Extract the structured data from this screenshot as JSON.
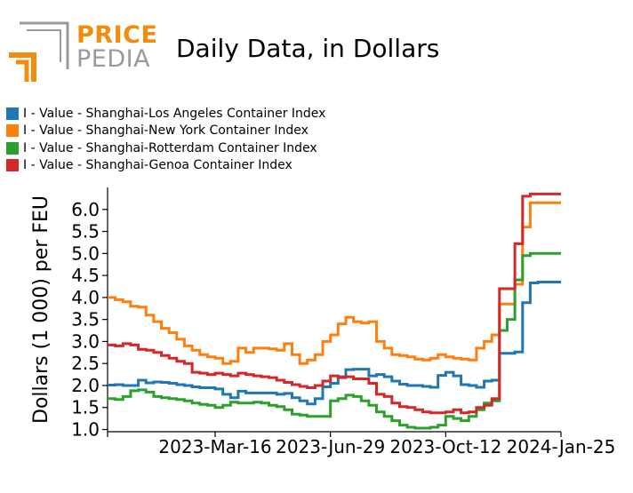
{
  "logo": {
    "word1": "PRICE",
    "word2": "PEDIA"
  },
  "colors": {
    "logo_orange": "#f28c0f",
    "logo_gray": "#9a9a9a"
  },
  "chart_data": {
    "type": "line",
    "title": "Daily Data, in Dollars",
    "ylabel": "Dollars (1 000) per FEU",
    "xlabel": "",
    "ylim": [
      0.95,
      6.5
    ],
    "yticks": [
      1.0,
      1.5,
      2.0,
      2.5,
      3.0,
      3.5,
      4.0,
      4.5,
      5.0,
      5.5,
      6.0
    ],
    "ytick_labels": [
      "1.0",
      "1.5",
      "2.0",
      "2.5",
      "3.0",
      "3.5",
      "4.0",
      "4.5",
      "5.0",
      "5.5",
      "6.0"
    ],
    "xlim": [
      "2022-12-08",
      "2024-01-25"
    ],
    "xticks": [
      "2023-03-16",
      "2023-06-29",
      "2023-10-12",
      "2024-01-25"
    ],
    "xtick_labels": [
      "2023-Mar-16",
      "2023-Jun-29",
      "2023-Oct-12",
      "2024-Jan-25"
    ],
    "legend_position": "top-left",
    "grid": false,
    "x": [
      "2022-12-08",
      "2022-12-15",
      "2022-12-22",
      "2022-12-29",
      "2023-01-05",
      "2023-01-12",
      "2023-01-19",
      "2023-01-26",
      "2023-02-02",
      "2023-02-09",
      "2023-02-16",
      "2023-02-23",
      "2023-03-02",
      "2023-03-09",
      "2023-03-16",
      "2023-03-23",
      "2023-03-30",
      "2023-04-06",
      "2023-04-13",
      "2023-04-20",
      "2023-04-27",
      "2023-05-04",
      "2023-05-11",
      "2023-05-18",
      "2023-05-25",
      "2023-06-01",
      "2023-06-08",
      "2023-06-15",
      "2023-06-22",
      "2023-06-29",
      "2023-07-06",
      "2023-07-13",
      "2023-07-20",
      "2023-07-27",
      "2023-08-03",
      "2023-08-10",
      "2023-08-17",
      "2023-08-24",
      "2023-08-31",
      "2023-09-07",
      "2023-09-14",
      "2023-09-21",
      "2023-09-28",
      "2023-10-05",
      "2023-10-12",
      "2023-10-19",
      "2023-10-26",
      "2023-11-02",
      "2023-11-09",
      "2023-11-16",
      "2023-11-23",
      "2023-11-30",
      "2023-12-07",
      "2023-12-14",
      "2023-12-21",
      "2023-12-28",
      "2024-01-04",
      "2024-01-11",
      "2024-01-18",
      "2024-01-25"
    ],
    "series": [
      {
        "name": "I - Value - Shanghai-Los Angeles Container Index",
        "color": "#1f77b4",
        "values": [
          2.01,
          2.02,
          2.0,
          2.0,
          2.12,
          2.06,
          2.08,
          2.07,
          2.05,
          2.02,
          2.0,
          1.97,
          1.95,
          1.95,
          1.92,
          1.8,
          1.72,
          1.87,
          1.83,
          1.83,
          1.83,
          1.83,
          1.8,
          1.82,
          1.72,
          1.65,
          1.58,
          1.7,
          1.97,
          2.05,
          2.2,
          2.36,
          2.37,
          2.37,
          2.22,
          2.25,
          2.2,
          2.1,
          2.03,
          2.0,
          2.0,
          1.98,
          1.96,
          2.23,
          2.3,
          2.22,
          2.02,
          2.0,
          1.96,
          2.1,
          2.12,
          2.73,
          2.73,
          2.76,
          3.88,
          4.33,
          4.35,
          4.35,
          4.35,
          4.35
        ]
      },
      {
        "name": "I - Value - Shanghai-New York Container Index",
        "color": "#ff7f0e",
        "values": [
          4.0,
          3.95,
          3.9,
          3.8,
          3.78,
          3.6,
          3.45,
          3.3,
          3.2,
          3.05,
          2.9,
          2.8,
          2.7,
          2.65,
          2.62,
          2.5,
          2.55,
          2.85,
          2.75,
          2.85,
          2.85,
          2.83,
          2.8,
          2.95,
          2.7,
          2.5,
          2.58,
          2.7,
          3.0,
          3.15,
          3.4,
          3.55,
          3.45,
          3.42,
          3.45,
          3.0,
          2.85,
          2.7,
          2.68,
          2.65,
          2.6,
          2.58,
          2.62,
          2.7,
          2.65,
          2.62,
          2.6,
          2.58,
          2.85,
          3.0,
          3.15,
          3.85,
          3.85,
          4.3,
          5.6,
          6.15,
          6.15,
          6.15,
          6.15,
          6.15
        ]
      },
      {
        "name": "I - Value - Shanghai-Rotterdam Container Index",
        "color": "#2ca02c",
        "values": [
          1.7,
          1.68,
          1.75,
          1.88,
          1.9,
          1.85,
          1.75,
          1.72,
          1.7,
          1.68,
          1.65,
          1.6,
          1.57,
          1.55,
          1.5,
          1.55,
          1.62,
          1.6,
          1.6,
          1.62,
          1.6,
          1.55,
          1.52,
          1.45,
          1.35,
          1.33,
          1.3,
          1.3,
          1.3,
          1.65,
          1.7,
          1.78,
          1.75,
          1.65,
          1.55,
          1.4,
          1.3,
          1.2,
          1.1,
          1.05,
          1.03,
          1.03,
          1.05,
          1.1,
          1.3,
          1.25,
          1.2,
          1.3,
          1.45,
          1.6,
          1.65,
          3.25,
          3.5,
          4.4,
          4.95,
          5.0,
          5.0,
          5.0,
          5.0,
          5.0
        ]
      },
      {
        "name": "I - Value - Shanghai-Genoa Container Index",
        "color": "#d62728",
        "values": [
          2.92,
          2.9,
          2.95,
          2.92,
          2.82,
          2.8,
          2.75,
          2.68,
          2.62,
          2.55,
          2.5,
          2.3,
          2.28,
          2.25,
          2.28,
          2.25,
          2.22,
          2.28,
          2.25,
          2.22,
          2.2,
          2.18,
          2.12,
          2.07,
          2.02,
          1.98,
          1.95,
          2.0,
          2.1,
          2.22,
          2.18,
          2.2,
          2.15,
          2.15,
          2.05,
          1.8,
          1.75,
          1.6,
          1.52,
          1.5,
          1.45,
          1.4,
          1.38,
          1.38,
          1.4,
          1.45,
          1.38,
          1.4,
          1.5,
          1.55,
          1.7,
          4.2,
          4.2,
          5.22,
          6.3,
          6.35,
          6.35,
          6.35,
          6.35,
          6.35
        ]
      }
    ]
  }
}
